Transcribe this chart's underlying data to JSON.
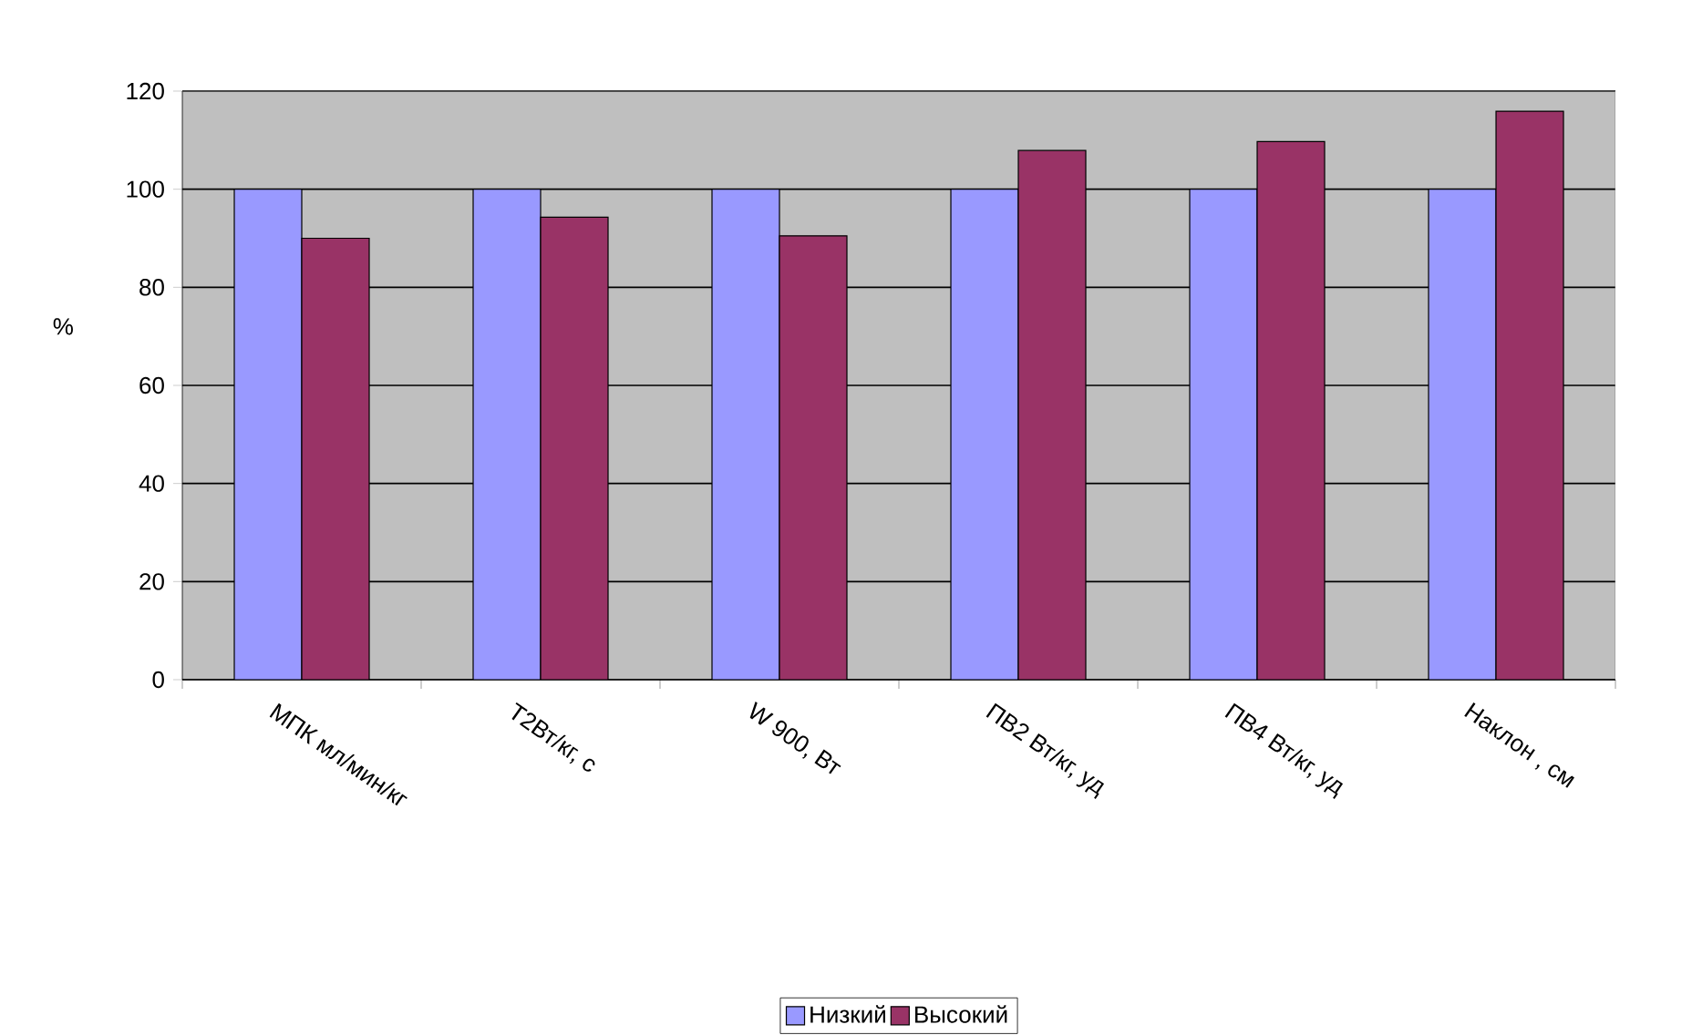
{
  "chart_data": {
    "type": "bar",
    "ylabel": "%",
    "categories": [
      "МПК мл/мин/кг",
      "Т2Вт/кг, с",
      "W 900, Вт",
      "ПВ2 Вт/кг, уд",
      "ПВ4 Вт/кг, уд",
      "Наклон , см"
    ],
    "series": [
      {
        "name": "Низкий",
        "color": "#9999ff",
        "values": [
          100,
          100,
          100,
          100,
          100,
          100
        ]
      },
      {
        "name": "Высокий",
        "color": "#993366",
        "values": [
          90,
          94.3,
          90.5,
          107.9,
          109.7,
          115.9
        ]
      }
    ],
    "ylim": [
      0,
      120
    ],
    "yticks": [
      0,
      20,
      40,
      60,
      80,
      100,
      120
    ],
    "grid": "y",
    "legend": "bottom"
  }
}
